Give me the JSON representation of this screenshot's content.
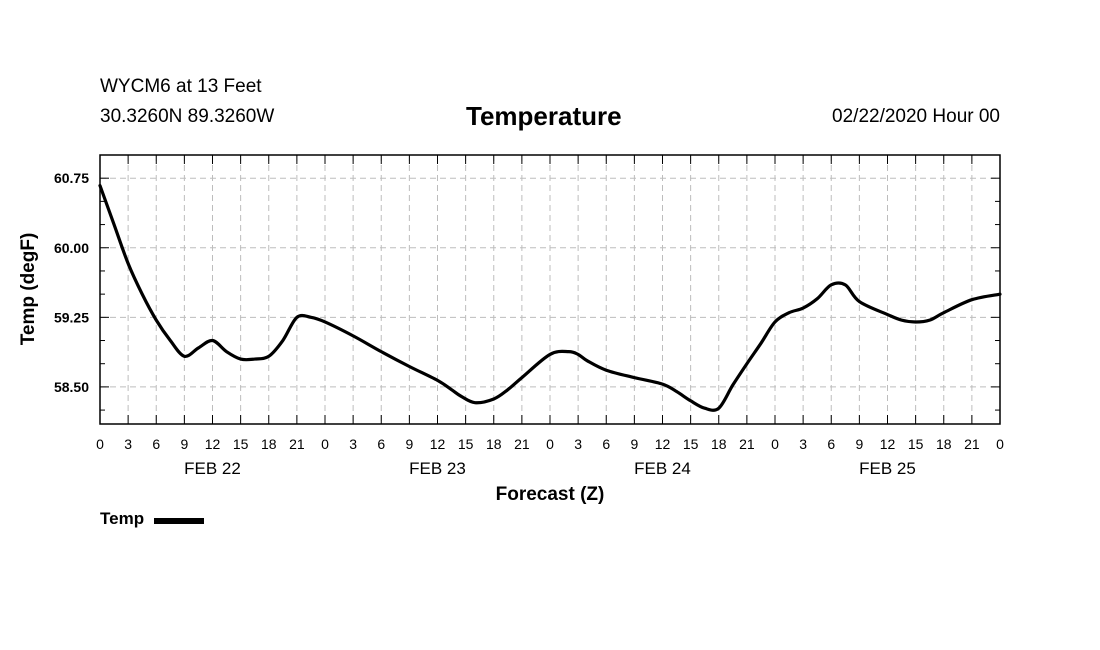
{
  "header": {
    "station": "WYCM6 at 13 Feet",
    "coords": "30.3260N 89.3260W",
    "run": "02/22/2020 Hour 00"
  },
  "chart_data": {
    "type": "line",
    "title": "Temperature",
    "xlabel": "Forecast (Z)",
    "ylabel": "Temp (degF)",
    "x_unit": "forecast hour",
    "xlim": [
      0,
      96
    ],
    "ylim": [
      58.1,
      61.0
    ],
    "yticks": [
      58.5,
      59.25,
      60.0,
      60.75
    ],
    "ytick_labels": [
      "58.50",
      "59.25",
      "60.00",
      "60.75"
    ],
    "xticks": [
      0,
      3,
      6,
      9,
      12,
      15,
      18,
      21,
      24,
      27,
      30,
      33,
      36,
      39,
      42,
      45,
      48,
      51,
      54,
      57,
      60,
      63,
      66,
      69,
      72,
      75,
      78,
      81,
      84,
      87,
      90,
      93,
      96
    ],
    "xtick_labels": [
      "0",
      "3",
      "6",
      "9",
      "12",
      "15",
      "18",
      "21",
      "0",
      "3",
      "6",
      "9",
      "12",
      "15",
      "18",
      "21",
      "0",
      "3",
      "6",
      "9",
      "12",
      "15",
      "18",
      "21",
      "0",
      "3",
      "6",
      "9",
      "12",
      "15",
      "18",
      "21",
      "0"
    ],
    "day_labels": [
      {
        "hour": 12,
        "label": "FEB 22"
      },
      {
        "hour": 36,
        "label": "FEB 23"
      },
      {
        "hour": 60,
        "label": "FEB 24"
      },
      {
        "hour": 84,
        "label": "FEB 25"
      }
    ],
    "grid": true,
    "legend": "bottom-left",
    "series": [
      {
        "name": "Temp",
        "color": "#000000",
        "x": [
          0,
          1.5,
          3,
          4.5,
          6,
          7.5,
          9,
          10.5,
          12,
          13.5,
          15,
          16.5,
          18,
          19.5,
          21,
          22.5,
          24,
          27,
          30,
          33,
          36,
          37.5,
          38.5,
          40,
          42,
          43.5,
          45,
          48,
          50,
          51,
          52,
          54,
          57,
          60,
          61.5,
          63,
          64.5,
          66,
          67.5,
          69,
          70.5,
          72,
          73.5,
          75,
          76.5,
          78,
          79.5,
          81,
          84,
          85.5,
          87,
          88.5,
          90,
          93,
          96
        ],
        "y": [
          60.67,
          60.25,
          59.83,
          59.5,
          59.22,
          59.0,
          58.83,
          58.92,
          59.0,
          58.88,
          58.8,
          58.8,
          58.83,
          59.0,
          59.25,
          59.25,
          59.2,
          59.05,
          58.88,
          58.72,
          58.57,
          58.47,
          58.4,
          58.33,
          58.37,
          58.47,
          58.6,
          58.85,
          58.88,
          58.85,
          58.78,
          58.68,
          58.6,
          58.53,
          58.45,
          58.35,
          58.27,
          58.27,
          58.52,
          58.75,
          58.97,
          59.2,
          59.3,
          59.35,
          59.45,
          59.6,
          59.6,
          59.42,
          59.28,
          59.22,
          59.2,
          59.22,
          59.3,
          59.44,
          59.5
        ]
      }
    ]
  }
}
